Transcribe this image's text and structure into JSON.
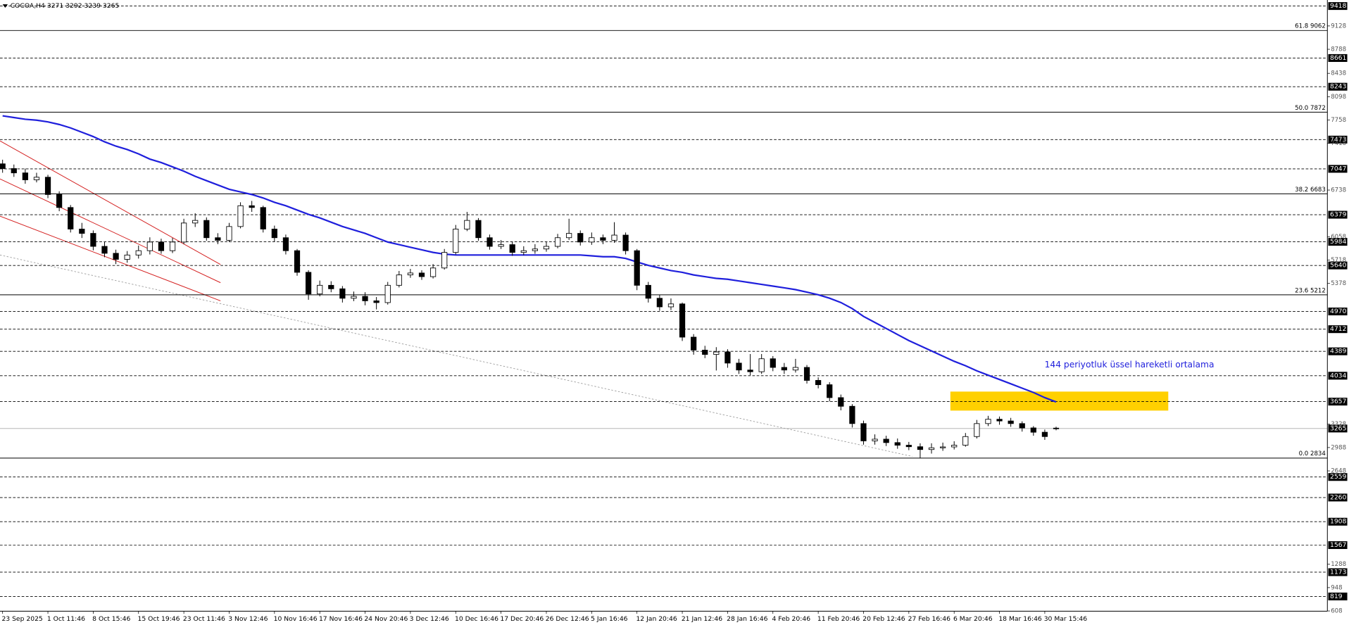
{
  "chart_data": {
    "type": "candlestick",
    "title": "COCOA,H4 3271 3292 3239 3265",
    "annotation": "144 periyotluk üssel hareketli ortalama",
    "categories": [
      "23 Sep 2025",
      null,
      null,
      null,
      "1 Oct 11:46",
      null,
      null,
      null,
      "8 Oct 15:46",
      null,
      null,
      null,
      "15 Oct 19:46",
      null,
      null,
      null,
      "23 Oct 11:46",
      null,
      null,
      null,
      "3 Nov 12:46",
      null,
      null,
      null,
      "10 Nov 16:46",
      null,
      null,
      null,
      "17 Nov 16:46",
      null,
      null,
      null,
      "24 Nov 20:46",
      null,
      null,
      null,
      "3 Dec 12:46",
      null,
      null,
      null,
      "10 Dec 16:46",
      null,
      null,
      null,
      "17 Dec 20:46",
      null,
      null,
      null,
      "26 Dec 12:46",
      null,
      null,
      null,
      "5 Jan 16:46",
      null,
      null,
      null,
      "12 Jan 20:46",
      null,
      null,
      null,
      "21 Jan 12:46",
      null,
      null,
      null,
      "28 Jan 16:46",
      null,
      null,
      null,
      "4 Feb 20:46",
      null,
      null,
      null,
      "11 Feb 20:46",
      null,
      null,
      null,
      "20 Feb 12:46",
      null,
      null,
      null,
      "27 Feb 16:46",
      null,
      null,
      null,
      "6 Mar 20:46",
      null,
      null,
      null,
      "18 Mar 16:46",
      null,
      null,
      null,
      "30 Mar 15:46",
      null
    ],
    "open": [
      7120,
      7051,
      6988,
      6887,
      6925,
      6673,
      6484,
      6170,
      6107,
      5918,
      5817,
      5729,
      5792,
      5855,
      5981,
      5855,
      5981,
      6258,
      6296,
      6044,
      6006,
      6207,
      6510,
      6484,
      6170,
      6044,
      5855,
      5540,
      5225,
      5351,
      5300,
      5162,
      5190,
      5125,
      5099,
      5351,
      5502,
      5530,
      5477,
      5603,
      5830,
      6170,
      6296,
      6044,
      5918,
      5943,
      5830,
      5855,
      5880,
      5918,
      6044,
      6107,
      5981,
      6044,
      6006,
      6082,
      5855,
      5351,
      5162,
      5037,
      5080,
      4596,
      4407,
      4344,
      4380,
      4218,
      4117,
      4092,
      4281,
      4155,
      4117,
      4155,
      3966,
      3903,
      3715,
      3589,
      3337,
      3085,
      3110,
      3060,
      3022,
      3000,
      2959,
      2984,
      2997,
      3022,
      3148,
      3337,
      3400,
      3375,
      3337,
      3274,
      3211,
      3271
    ],
    "high": [
      7180,
      7110,
      7050,
      6990,
      6960,
      6720,
      6520,
      6260,
      6150,
      5980,
      5870,
      5850,
      5930,
      6050,
      6030,
      6040,
      6320,
      6400,
      6340,
      6110,
      6260,
      6560,
      6580,
      6510,
      6220,
      6090,
      5880,
      5570,
      5420,
      5410,
      5340,
      5260,
      5250,
      5180,
      5400,
      5560,
      5590,
      5570,
      5660,
      5880,
      6230,
      6420,
      6330,
      6090,
      6010,
      5990,
      5920,
      5950,
      5980,
      6100,
      6320,
      6150,
      6120,
      6090,
      6270,
      6120,
      5880,
      5400,
      5210,
      5160,
      5100,
      4640,
      4470,
      4450,
      4420,
      4280,
      4350,
      4350,
      4320,
      4220,
      4280,
      4190,
      4010,
      3940,
      3760,
      3620,
      3380,
      3180,
      3160,
      3120,
      3070,
      3050,
      3050,
      3060,
      3080,
      3200,
      3390,
      3450,
      3440,
      3420,
      3370,
      3300,
      3250,
      3292
    ],
    "low": [
      6990,
      6930,
      6830,
      6850,
      6620,
      6430,
      6120,
      6040,
      5860,
      5760,
      5660,
      5680,
      5740,
      5800,
      5810,
      5820,
      5950,
      6200,
      6000,
      5950,
      5980,
      6180,
      6420,
      6120,
      5990,
      5800,
      5490,
      5140,
      5190,
      5250,
      5100,
      5120,
      5060,
      5000,
      5070,
      5320,
      5460,
      5430,
      5450,
      5580,
      5800,
      6140,
      6000,
      5870,
      5880,
      5780,
      5790,
      5810,
      5840,
      5890,
      6010,
      5930,
      5940,
      5950,
      5970,
      5800,
      5280,
      5100,
      4980,
      4990,
      4540,
      4340,
      4290,
      4110,
      4150,
      4060,
      4040,
      4060,
      4100,
      4060,
      4080,
      3920,
      3850,
      3660,
      3530,
      3280,
      3030,
      3030,
      3010,
      2970,
      2950,
      2834,
      2900,
      2940,
      2960,
      3000,
      3120,
      3300,
      3320,
      3290,
      3220,
      3160,
      3100,
      3239
    ],
    "close": [
      7051,
      6988,
      6887,
      6925,
      6673,
      6484,
      6170,
      6107,
      5918,
      5817,
      5729,
      5792,
      5855,
      5981,
      5855,
      5981,
      6258,
      6296,
      6044,
      6006,
      6207,
      6510,
      6484,
      6170,
      6044,
      5855,
      5540,
      5225,
      5351,
      5300,
      5162,
      5190,
      5125,
      5099,
      5351,
      5502,
      5530,
      5477,
      5603,
      5830,
      6170,
      6296,
      6044,
      5918,
      5943,
      5830,
      5855,
      5880,
      5918,
      6044,
      6107,
      5981,
      6044,
      6006,
      6082,
      5855,
      5351,
      5162,
      5037,
      5080,
      4596,
      4407,
      4344,
      4380,
      4218,
      4117,
      4092,
      4281,
      4155,
      4117,
      4155,
      3966,
      3903,
      3715,
      3589,
      3337,
      3085,
      3110,
      3060,
      3022,
      3000,
      2959,
      2984,
      2997,
      3022,
      3148,
      3337,
      3400,
      3375,
      3337,
      3274,
      3211,
      3148,
      3265
    ],
    "up_color": "#ffffff",
    "down_color": "#000000",
    "ema": {
      "color": "#1f1fdc",
      "values": [
        7819,
        7794,
        7769,
        7756,
        7731,
        7693,
        7643,
        7580,
        7517,
        7441,
        7378,
        7328,
        7265,
        7189,
        7139,
        7076,
        7013,
        6938,
        6875,
        6812,
        6749,
        6711,
        6673,
        6623,
        6560,
        6510,
        6447,
        6384,
        6333,
        6270,
        6207,
        6157,
        6107,
        6044,
        5981,
        5943,
        5905,
        5868,
        5830,
        5805,
        5792,
        5792,
        5792,
        5792,
        5792,
        5792,
        5792,
        5792,
        5792,
        5792,
        5792,
        5792,
        5780,
        5767,
        5767,
        5742,
        5691,
        5641,
        5603,
        5565,
        5540,
        5502,
        5477,
        5452,
        5439,
        5414,
        5389,
        5364,
        5339,
        5314,
        5288,
        5251,
        5213,
        5163,
        5100,
        5012,
        4898,
        4810,
        4722,
        4634,
        4546,
        4470,
        4395,
        4319,
        4244,
        4180,
        4105,
        4042,
        3979,
        3916,
        3853,
        3790,
        3715,
        3652
      ]
    },
    "ylim": [
      605,
      9506
    ],
    "yticks": [
      9128,
      8788,
      8438,
      8098,
      7758,
      7418,
      6738,
      6058,
      5718,
      5378,
      3328,
      2988,
      2648,
      1288,
      948,
      608
    ],
    "grid": false,
    "levels": [
      9418,
      8661,
      8243,
      7473,
      7047,
      6379,
      5984,
      5640,
      4970,
      4712,
      4389,
      4034,
      3657,
      2559,
      2260,
      1908,
      1567,
      1173,
      819
    ],
    "fib_levels": [
      {
        "value": 9062,
        "label": "61.8 9062"
      },
      {
        "value": 7872,
        "label": "50.0 7872"
      },
      {
        "value": 6683,
        "label": "38.2 6683"
      },
      {
        "value": 5212,
        "label": "23.6 5212"
      },
      {
        "value": 2834,
        "label": "0.0 2834"
      }
    ],
    "price_line": 3265,
    "zone": {
      "color": "#ffd000",
      "range": [
        3526,
        3803
      ]
    }
  }
}
